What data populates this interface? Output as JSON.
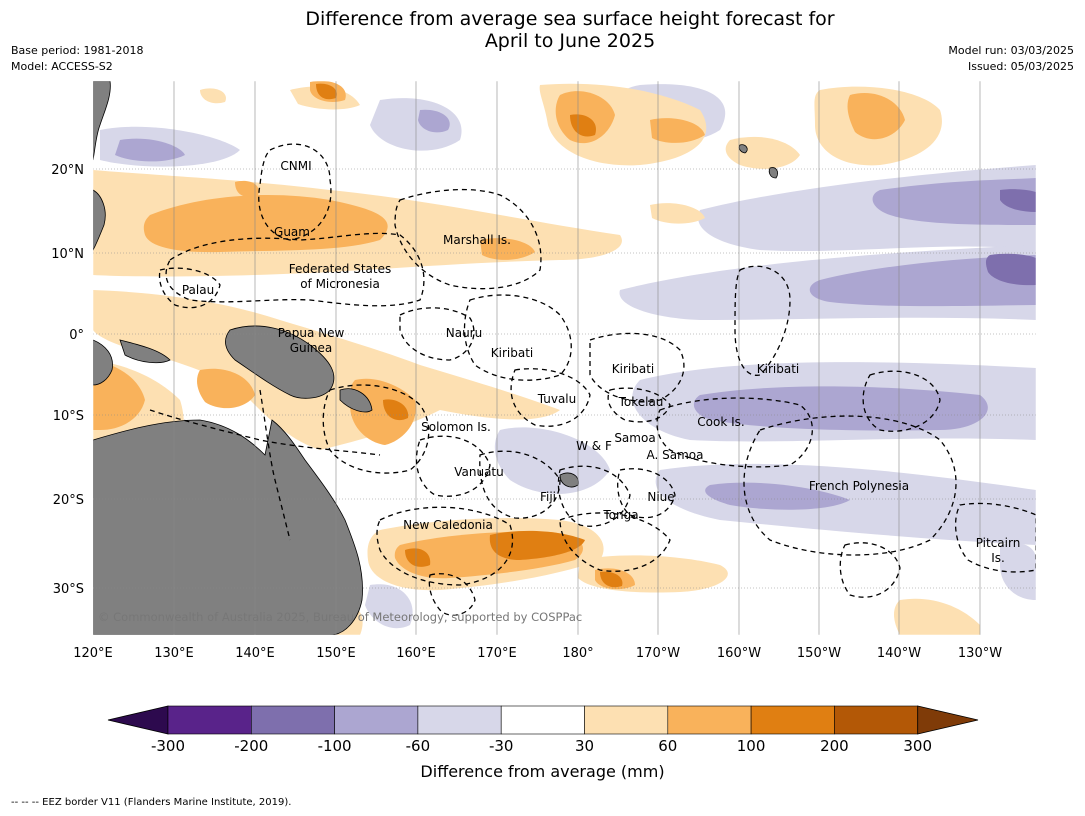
{
  "title": {
    "line1": "Difference from average sea surface height forecast for",
    "line2": "April to June 2025"
  },
  "meta": {
    "base_period": "Base period: 1981-2018",
    "model": "Model: ACCESS-S2",
    "model_run": "Model run: 03/03/2025",
    "issued": "Issued: 05/03/2025"
  },
  "axes": {
    "lon_labels": [
      "120°E",
      "130°E",
      "140°E",
      "150°E",
      "160°E",
      "170°E",
      "180°",
      "170°W",
      "160°W",
      "150°W",
      "140°W",
      "130°W"
    ],
    "lat_labels": [
      "20°N",
      "10°N",
      "0°",
      "10°S",
      "20°S",
      "30°S"
    ]
  },
  "regions": [
    {
      "name": "CNMI"
    },
    {
      "name": "Guam"
    },
    {
      "name": "Marshall Is."
    },
    {
      "name": "Federated States"
    },
    {
      "name": "of Micronesia"
    },
    {
      "name": "Palau"
    },
    {
      "name": "Nauru"
    },
    {
      "name": "Papua New"
    },
    {
      "name": "Guinea"
    },
    {
      "name": "Kiribati"
    },
    {
      "name": "Kiribati"
    },
    {
      "name": "Kiribati"
    },
    {
      "name": "Tuvalu"
    },
    {
      "name": "Tokelau"
    },
    {
      "name": "Solomon Is."
    },
    {
      "name": "Cook Is."
    },
    {
      "name": "Samoa"
    },
    {
      "name": "W & F"
    },
    {
      "name": "A. Samoa"
    },
    {
      "name": "Vanuatu"
    },
    {
      "name": "Fiji"
    },
    {
      "name": "Niue"
    },
    {
      "name": "French Polynesia"
    },
    {
      "name": "Tonga"
    },
    {
      "name": "New Caledonia"
    },
    {
      "name": "Pitcairn"
    },
    {
      "name": "Is."
    }
  ],
  "copyright": "© Commonwealth of Australia 2025, Bureau of Meteorology, supported by COSPPac",
  "colorbar": {
    "title": "Difference from average (mm)",
    "ticks": [
      "-300",
      "-200",
      "-100",
      "-60",
      "-30",
      "30",
      "60",
      "100",
      "200",
      "300"
    ],
    "colors": [
      "#2d0a4e",
      "#59238a",
      "#7e6fad",
      "#aca6d1",
      "#d7d7e9",
      "#ffffff",
      "#fde0b2",
      "#f9b25b",
      "#e07f12",
      "#b35806",
      "#7f3b08"
    ]
  },
  "footer": "--  --  -- EEZ border V11 (Flanders Marine Institute, 2019)."
}
